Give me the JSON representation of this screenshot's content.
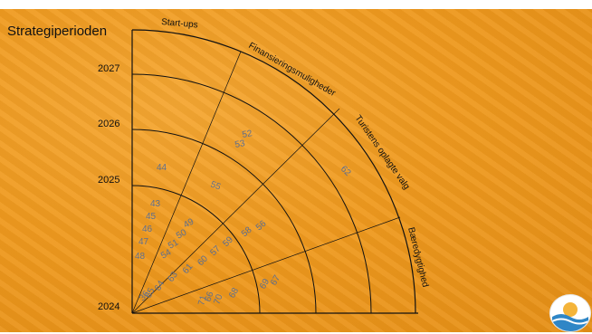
{
  "title": "Strategiperioden",
  "years": [
    "2024",
    "2025",
    "2026",
    "2027"
  ],
  "categories": [
    "Start-ups",
    "Finansieringsmuligheder",
    "Turistens oplagte valg",
    "Bæredygtighed"
  ],
  "numbers": [
    "36",
    "52",
    "53",
    "44",
    "55",
    "62",
    "43",
    "45",
    "46",
    "47",
    "48",
    "49",
    "50",
    "51",
    "54",
    "56",
    "57",
    "58",
    "59",
    "60",
    "61",
    "63",
    "64",
    "65",
    "66",
    "67",
    "68",
    "69",
    "70",
    "71"
  ],
  "logo_icon": "wave-logo-icon"
}
